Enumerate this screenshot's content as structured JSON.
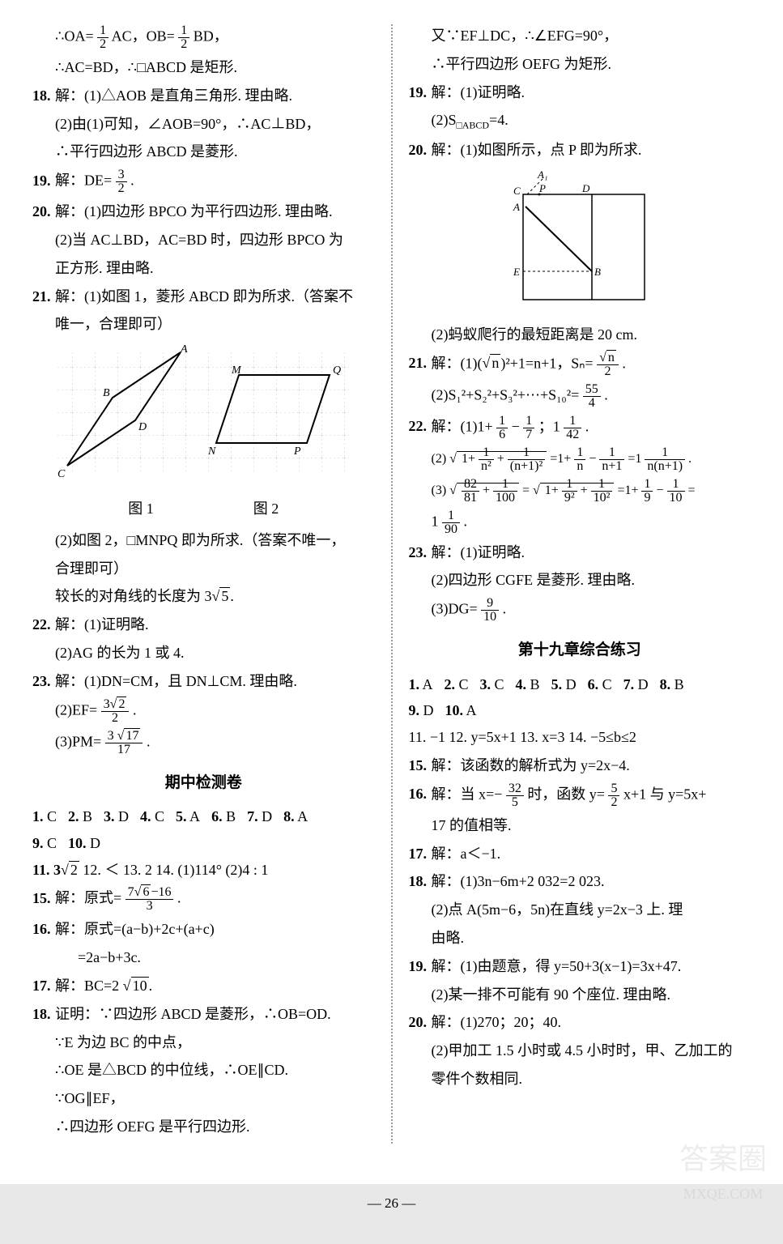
{
  "left": {
    "l1": "∴OA=",
    "l1_frac1n": "1",
    "l1_frac1d": "2",
    "l1b": "AC，OB=",
    "l1_frac2n": "1",
    "l1_frac2d": "2",
    "l1c": "BD，",
    "l2": "∴AC=BD，∴□ABCD 是矩形.",
    "n18": "18.",
    "l18_1": "解：(1)△AOB 是直角三角形. 理由略.",
    "l18_2": "(2)由(1)可知，∠AOB=90°，∴AC⊥BD，",
    "l18_3": "∴平行四边形 ABCD 是菱形.",
    "n19": "19.",
    "l19_1": "解：DE=",
    "l19_fracn": "3",
    "l19_fracd": "2",
    "l19_2": ".",
    "n20": "20.",
    "l20_1": "解：(1)四边形 BPCO 为平行四边形. 理由略.",
    "l20_2": "(2)当 AC⊥BD，AC=BD 时，四边形 BPCO 为",
    "l20_3": "正方形. 理由略.",
    "n21": "21.",
    "l21_1": "解：(1)如图 1，菱形 ABCD 即为所求.（答案不",
    "l21_2": "唯一，合理即可）",
    "fig_label_1": "图 1",
    "fig_label_2": "图 2",
    "l21_3": "(2)如图 2，□MNPQ 即为所求.（答案不唯一，",
    "l21_4": "合理即可）",
    "l21_5": "较长的对角线的长度为 3",
    "l21_5_rad": "5",
    "l21_5b": ".",
    "n22": "22.",
    "l22_1": "解：(1)证明略.",
    "l22_2": "(2)AG 的长为 1 或 4.",
    "n23": "23.",
    "l23_1": "解：(1)DN=CM，且 DN⊥CM. 理由略.",
    "l23_2a": "(2)EF=",
    "l23_2n": "3",
    "l23_2rad": "2",
    "l23_2d": "2",
    "l23_2b": ".",
    "l23_3a": "(3)PM=",
    "l23_3n": "3 ",
    "l23_3rad": "17",
    "l23_3d": "17",
    "l23_3b": ".",
    "midterm_title": "期中检测卷",
    "mcq1": [
      {
        "n": "1.",
        "a": "C"
      },
      {
        "n": "2.",
        "a": "B"
      },
      {
        "n": "3.",
        "a": "D"
      },
      {
        "n": "4.",
        "a": "C"
      },
      {
        "n": "5.",
        "a": "A"
      },
      {
        "n": "6.",
        "a": "B"
      },
      {
        "n": "7.",
        "a": "D"
      },
      {
        "n": "8.",
        "a": "A"
      }
    ],
    "mcq2": [
      {
        "n": "9.",
        "a": "C"
      },
      {
        "n": "10.",
        "a": "D"
      }
    ],
    "l_m11a": "11. 3",
    "l_m11_rad": "2",
    "l_m12": "   12. ＜   13. 2   14. (1)114°   (2)4 : 1",
    "n_m15": "15.",
    "l_m15a": "解：原式=",
    "l_m15n": "7",
    "l_m15rad": "6",
    "l_m15n2": "−16",
    "l_m15d": "3",
    "l_m15b": ".",
    "n_m16": "16.",
    "l_m16_1": "解：原式=(a−b)+2c+(a+c)",
    "l_m16_2": "=2a−b+3c.",
    "n_m17": "17.",
    "l_m17a": "解：BC=2 ",
    "l_m17rad": "10",
    "l_m17b": ".",
    "n_m18": "18.",
    "l_m18_1": "证明：∵四边形 ABCD 是菱形，∴OB=OD.",
    "l_m18_2": "∵E 为边 BC 的中点，",
    "l_m18_3": "∴OE 是△BCD 的中位线，∴OE∥CD.",
    "l_m18_4": "∵OG∥EF，",
    "l_m18_5": "∴四边形 OEFG 是平行四边形."
  },
  "right": {
    "r1": "又∵EF⊥DC，∴∠EFG=90°，",
    "r2": "∴平行四边形 OEFG 为矩形.",
    "n19": "19.",
    "r19_1": "解：(1)证明略.",
    "r19_2": "(2)S□ABCD=4.",
    "n20": "20.",
    "r20_1": "解：(1)如图所示，点 P 即为所求.",
    "fig_labels": {
      "A1": "A₁",
      "C": "C",
      "P": "P",
      "D": "D",
      "A": "A",
      "E": "E",
      "B": "B"
    },
    "r20_2": "(2)蚂蚁爬行的最短距离是 20 cm.",
    "n21": "21.",
    "r21_1a": "解：(1)(",
    "r21_1rad": "n",
    "r21_1b": ")²+1=n+1，Sₙ=",
    "r21_1n": "",
    "r21_1rad2": "n",
    "r21_1d": "2",
    "r21_1c": ".",
    "r21_2a": "(2)S₁²+S₂²+S₃²+⋯+S₁₀²=",
    "r21_2n": "55",
    "r21_2d": "4",
    "r21_2b": ".",
    "n22": "22.",
    "r22_1a": "解：(1)1+",
    "r22_1f1n": "1",
    "r22_1f1d": "6",
    "r22_1b": "−",
    "r22_1f2n": "1",
    "r22_1f2d": "7",
    "r22_1c": "；1",
    "r22_1f3n": "1",
    "r22_1f3d": "42",
    "r22_1d": ".",
    "r22_2_expr_rad": "1+",
    "r22_2_f1n": "1",
    "r22_2_f1d": "n²",
    "r22_2_plus": "+",
    "r22_2_f2n": "1",
    "r22_2_f2d": "(n+1)²",
    "r22_2_eq": "=1+",
    "r22_2_f3n": "1",
    "r22_2_f3d": "n",
    "r22_2_minus": "−",
    "r22_2_f4n": "1",
    "r22_2_f4d": "n+1",
    "r22_2_eq2": "=1",
    "r22_2_f5n": "1",
    "r22_2_f5d": "n(n+1)",
    "r22_2_dot": ".",
    "r22_2_prefix": "(2)",
    "r22_3_prefix": "(3)",
    "r22_3_f1n": "82",
    "r22_3_f1d": "81",
    "r22_3_plus1": "+",
    "r22_3_f2n": "1",
    "r22_3_f2d": "100",
    "r22_3_eq1": "=",
    "r22_3_rad2_1": "1+",
    "r22_3_f3n": "1",
    "r22_3_f3d": "9²",
    "r22_3_plus2": "+",
    "r22_3_f4n": "1",
    "r22_3_f4d": "10²",
    "r22_3_eq2": "=1+",
    "r22_3_f5n": "1",
    "r22_3_f5d": "9",
    "r22_3_minus": "−",
    "r22_3_f6n": "1",
    "r22_3_f6d": "10",
    "r22_3_eq3": "=",
    "r22_3_end": "1",
    "r22_3_f7n": "1",
    "r22_3_f7d": "90",
    "r22_3_dot": ".",
    "n23": "23.",
    "r23_1": "解：(1)证明略.",
    "r23_2": "(2)四边形 CGFE 是菱形. 理由略.",
    "r23_3a": "(3)DG=",
    "r23_3n": "9",
    "r23_3d": "10",
    "r23_3b": ".",
    "ch19_title": "第十九章综合练习",
    "mcq3": [
      {
        "n": "1.",
        "a": "A"
      },
      {
        "n": "2.",
        "a": "C"
      },
      {
        "n": "3.",
        "a": "C"
      },
      {
        "n": "4.",
        "a": "B"
      },
      {
        "n": "5.",
        "a": "D"
      },
      {
        "n": "6.",
        "a": "C"
      },
      {
        "n": "7.",
        "a": "D"
      },
      {
        "n": "8.",
        "a": "B"
      }
    ],
    "mcq4": [
      {
        "n": "9.",
        "a": "D"
      },
      {
        "n": "10.",
        "a": "A"
      }
    ],
    "r_m11": "11. −1   12. y=5x+1   13. x=3   14. −5≤b≤2",
    "n_m15": "15.",
    "r_m15": "解：该函数的解析式为 y=2x−4.",
    "n_m16": "16.",
    "r_m16a": "解：当 x=−",
    "r_m16_f1n": "32",
    "r_m16_f1d": "5",
    "r_m16b": "时，函数 y=",
    "r_m16_f2n": "5",
    "r_m16_f2d": "2",
    "r_m16c": "x+1 与 y=5x+",
    "r_m16_2": "17 的值相等.",
    "n_m17": "17.",
    "r_m17": "解：a＜−1.",
    "n_m18": "18.",
    "r_m18_1": "解：(1)3n−6m+2 032=2 023.",
    "r_m18_2": "(2)点 A(5m−6，5n)在直线 y=2x−3 上. 理",
    "r_m18_3": "由略.",
    "n_m19": "19.",
    "r_m19_1": "解：(1)由题意，得 y=50+3(x−1)=3x+47.",
    "r_m19_2": "(2)某一排不可能有 90 个座位. 理由略.",
    "n_m20": "20.",
    "r_m20_1": "解：(1)270；20；40.",
    "r_m20_2": "(2)甲加工 1.5 小时或 4.5 小时时，甲、乙加工的",
    "r_m20_3": "零件个数相同."
  },
  "page_num": "— 26 —",
  "watermark1": "答案圈",
  "watermark2": "MXQE.COM"
}
